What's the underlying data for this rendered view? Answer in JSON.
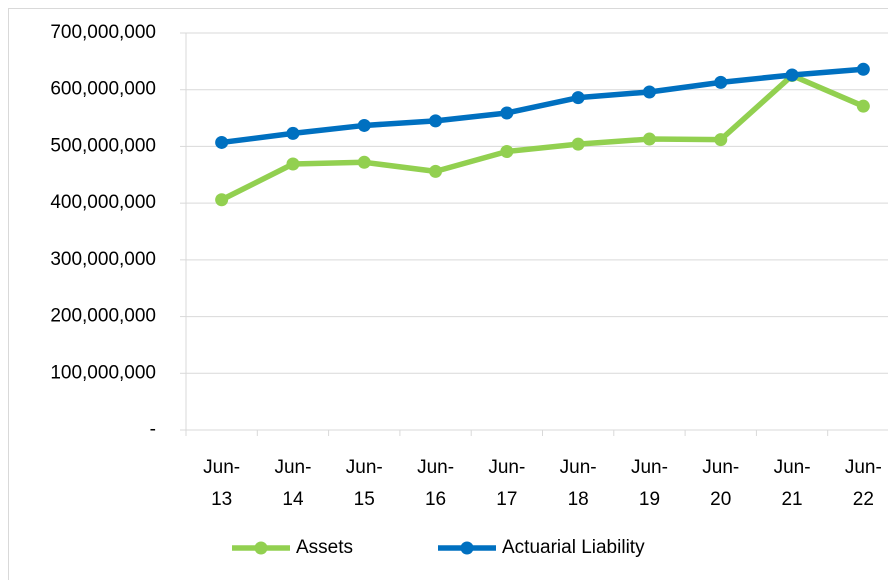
{
  "chart_data": {
    "type": "line",
    "categories": [
      "Jun-13",
      "Jun-14",
      "Jun-15",
      "Jun-16",
      "Jun-17",
      "Jun-18",
      "Jun-19",
      "Jun-20",
      "Jun-21",
      "Jun-22"
    ],
    "series": [
      {
        "name": "Assets",
        "color": "#92d050",
        "values": [
          406000000,
          469000000,
          472000000,
          456000000,
          491000000,
          504000000,
          513000000,
          512000000,
          625000000,
          571000000
        ]
      },
      {
        "name": "Actuarial Liability",
        "color": "#0070c0",
        "values": [
          507000000,
          523000000,
          537000000,
          545000000,
          559000000,
          586000000,
          596000000,
          613000000,
          626000000,
          636000000
        ]
      }
    ],
    "ylim": [
      0,
      700000000
    ],
    "yticks": [
      {
        "value": 0,
        "label": "-"
      },
      {
        "value": 100000000,
        "label": "100,000,000"
      },
      {
        "value": 200000000,
        "label": "200,000,000"
      },
      {
        "value": 300000000,
        "label": "300,000,000"
      },
      {
        "value": 400000000,
        "label": "400,000,000"
      },
      {
        "value": 500000000,
        "label": "500,000,000"
      },
      {
        "value": 600000000,
        "label": "600,000,000"
      },
      {
        "value": 700000000,
        "label": "700,000,000"
      }
    ],
    "grid": true,
    "legend": "bottom"
  }
}
